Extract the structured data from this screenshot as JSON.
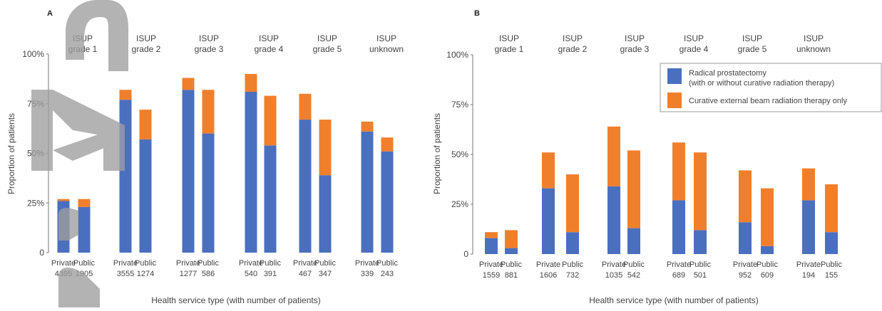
{
  "chart_data": [
    {
      "type": "bar",
      "panel_label": "A",
      "stacked": true,
      "ylabel": "Proportion of patients",
      "xlabel": "Health service type (with number of patients)",
      "ylim": [
        0,
        100
      ],
      "yticks": [
        "0",
        "25%",
        "50%",
        "75%",
        "100%"
      ],
      "legend": "none",
      "grid": false,
      "groups": [
        {
          "label_line1": "ISUP",
          "label_line2": "grade 1",
          "bars": [
            {
              "type": "Private",
              "n": "4395",
              "values": [
                26,
                1
              ]
            },
            {
              "type": "Public",
              "n": "1905",
              "values": [
                23,
                4
              ]
            }
          ]
        },
        {
          "label_line1": "ISUP",
          "label_line2": "grade 2",
          "bars": [
            {
              "type": "Private",
              "n": "3555",
              "values": [
                77,
                5
              ]
            },
            {
              "type": "Public",
              "n": "1274",
              "values": [
                57,
                15
              ]
            }
          ]
        },
        {
          "label_line1": "ISUP",
          "label_line2": "grade 3",
          "bars": [
            {
              "type": "Private",
              "n": "1277",
              "values": [
                82,
                6
              ]
            },
            {
              "type": "Public",
              "n": "586",
              "values": [
                60,
                22
              ]
            }
          ]
        },
        {
          "label_line1": "ISUP",
          "label_line2": "grade 4",
          "bars": [
            {
              "type": "Private",
              "n": "540",
              "values": [
                81,
                9
              ]
            },
            {
              "type": "Public",
              "n": "391",
              "values": [
                54,
                25
              ]
            }
          ]
        },
        {
          "label_line1": "ISUP",
          "label_line2": "grade 5",
          "bars": [
            {
              "type": "Private",
              "n": "467",
              "values": [
                67,
                13
              ]
            },
            {
              "type": "Public",
              "n": "347",
              "values": [
                39,
                28
              ]
            }
          ]
        },
        {
          "label_line1": "ISUP",
          "label_line2": "unknown",
          "bars": [
            {
              "type": "Private",
              "n": "339",
              "values": [
                61,
                5
              ]
            },
            {
              "type": "Public",
              "n": "243",
              "values": [
                51,
                7
              ]
            }
          ]
        }
      ]
    },
    {
      "type": "bar",
      "panel_label": "B",
      "stacked": true,
      "ylabel": "Proportion of patients",
      "xlabel": "Health service type (with number of patients)",
      "ylim": [
        0,
        100
      ],
      "yticks": [
        "0",
        "25%",
        "50%",
        "75%",
        "100%"
      ],
      "legend": "top-right",
      "grid": false,
      "groups": [
        {
          "label_line1": "ISUP",
          "label_line2": "grade 1",
          "bars": [
            {
              "type": "Private",
              "n": "1559",
              "values": [
                8,
                3
              ]
            },
            {
              "type": "Public",
              "n": "881",
              "values": [
                3,
                9
              ]
            }
          ]
        },
        {
          "label_line1": "ISUP",
          "label_line2": "grade 2",
          "bars": [
            {
              "type": "Private",
              "n": "1606",
              "values": [
                33,
                18
              ]
            },
            {
              "type": "Public",
              "n": "732",
              "values": [
                11,
                29
              ]
            }
          ]
        },
        {
          "label_line1": "ISUP",
          "label_line2": "grade 3",
          "bars": [
            {
              "type": "Private",
              "n": "1035",
              "values": [
                34,
                30
              ]
            },
            {
              "type": "Public",
              "n": "542",
              "values": [
                13,
                39
              ]
            }
          ]
        },
        {
          "label_line1": "ISUP",
          "label_line2": "grade 4",
          "bars": [
            {
              "type": "Private",
              "n": "689",
              "values": [
                27,
                29
              ]
            },
            {
              "type": "Public",
              "n": "501",
              "values": [
                12,
                39
              ]
            }
          ]
        },
        {
          "label_line1": "ISUP",
          "label_line2": "grade 5",
          "bars": [
            {
              "type": "Private",
              "n": "952",
              "values": [
                16,
                26
              ]
            },
            {
              "type": "Public",
              "n": "609",
              "values": [
                4,
                29
              ]
            }
          ]
        },
        {
          "label_line1": "ISUP",
          "label_line2": "unknown",
          "bars": [
            {
              "type": "Private",
              "n": "194",
              "values": [
                27,
                16
              ]
            },
            {
              "type": "Public",
              "n": "155",
              "values": [
                11,
                24
              ]
            }
          ]
        }
      ]
    }
  ],
  "series": [
    {
      "name": "Radical prostatectomy",
      "name_line2": "(with or without curative radiation therapy)",
      "color": "#4a6fbf"
    },
    {
      "name": "Curative external beam radiation therapy only",
      "name_line2": "",
      "color": "#f07f2c"
    }
  ],
  "watermark": {
    "color": "#9e9e9e"
  }
}
